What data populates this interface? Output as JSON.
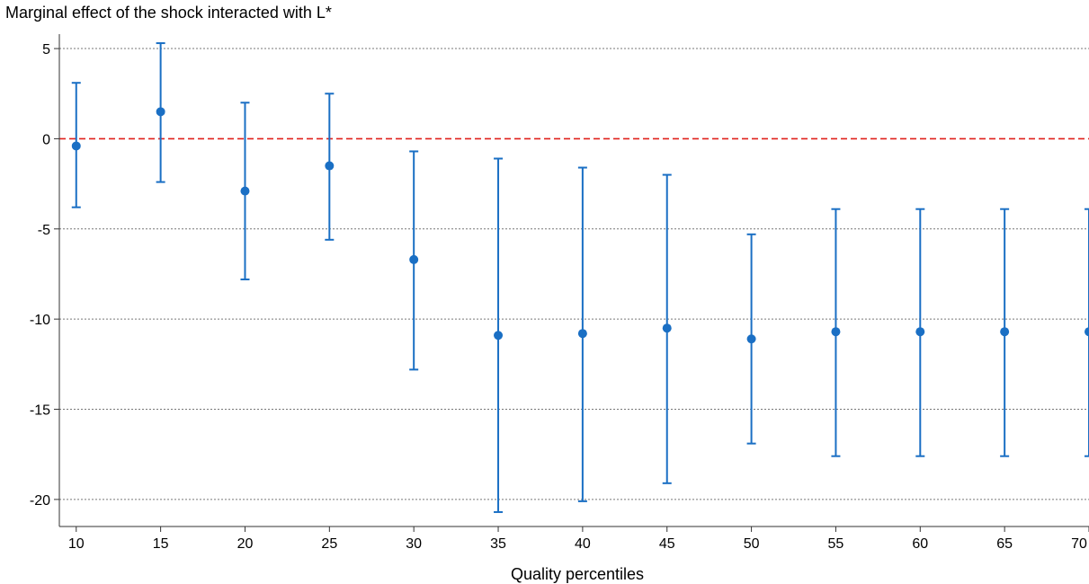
{
  "chart_data": {
    "type": "scatter",
    "title": "Marginal effect of the shock interacted with L*",
    "xlabel": "Quality percentiles",
    "ylabel": "",
    "x": [
      10,
      15,
      20,
      25,
      30,
      35,
      40,
      45,
      50,
      55,
      60,
      65,
      70
    ],
    "y": [
      -0.4,
      1.5,
      -2.9,
      -1.5,
      -6.7,
      -10.9,
      -10.8,
      -10.5,
      -11.1,
      -10.7,
      -10.7,
      -10.7,
      -10.7
    ],
    "ci_lower": [
      -3.8,
      -2.4,
      -7.8,
      -5.6,
      -12.8,
      -20.7,
      -20.1,
      -19.1,
      -16.9,
      -17.6,
      -17.6,
      -17.6,
      -17.6
    ],
    "ci_upper": [
      3.1,
      5.3,
      2.0,
      2.5,
      -0.7,
      -1.1,
      -1.6,
      -2.0,
      -5.3,
      -3.9,
      -3.9,
      -3.9,
      -3.9
    ],
    "xlim": [
      9,
      70
    ],
    "ylim": [
      -21.5,
      5.8
    ],
    "xticks": [
      10,
      15,
      20,
      25,
      30,
      35,
      40,
      45,
      50,
      55,
      60,
      65,
      70
    ],
    "yticks": [
      5,
      0,
      -5,
      -10,
      -15,
      -20
    ],
    "reference_line": 0,
    "grid": "horizontal dotted",
    "colors": {
      "points": "#1a6fc4",
      "error_bars": "#1a6fc4",
      "reference_line": "#e0201b",
      "grid": "#777777",
      "axis": "#333333"
    }
  }
}
